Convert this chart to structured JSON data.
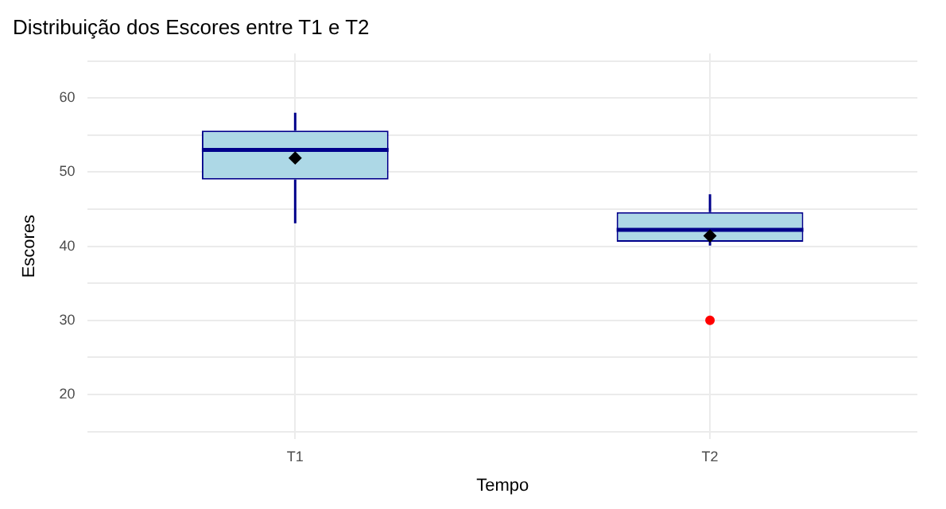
{
  "chart_data": {
    "type": "box",
    "title": "Distribuição dos Escores entre T1 e T2",
    "xlabel": "Tempo",
    "ylabel": "Escores",
    "categories": [
      "T1",
      "T2"
    ],
    "series": [
      {
        "color": "#00008b",
        "boxes": [
          {
            "low": 43.1,
            "q1": 49,
            "median": 53,
            "q3": 55.6,
            "high": 58,
            "mean": 51.9
          },
          {
            "low": 40.1,
            "q1": 40.6,
            "median": 42.2,
            "q3": 44.6,
            "high": 47,
            "mean": 41.4,
            "outliers": [
              30
            ]
          }
        ]
      }
    ],
    "ylim": [
      14,
      66
    ],
    "yticks": [
      {
        "value": 15,
        "label": null
      },
      20,
      {
        "value": 25,
        "label": null
      },
      30,
      {
        "value": 35,
        "label": null
      },
      40,
      {
        "value": 45,
        "label": null
      },
      50,
      {
        "value": 55,
        "label": null
      },
      60,
      {
        "value": 65,
        "label": null
      }
    ],
    "grid": true,
    "legend": false
  }
}
